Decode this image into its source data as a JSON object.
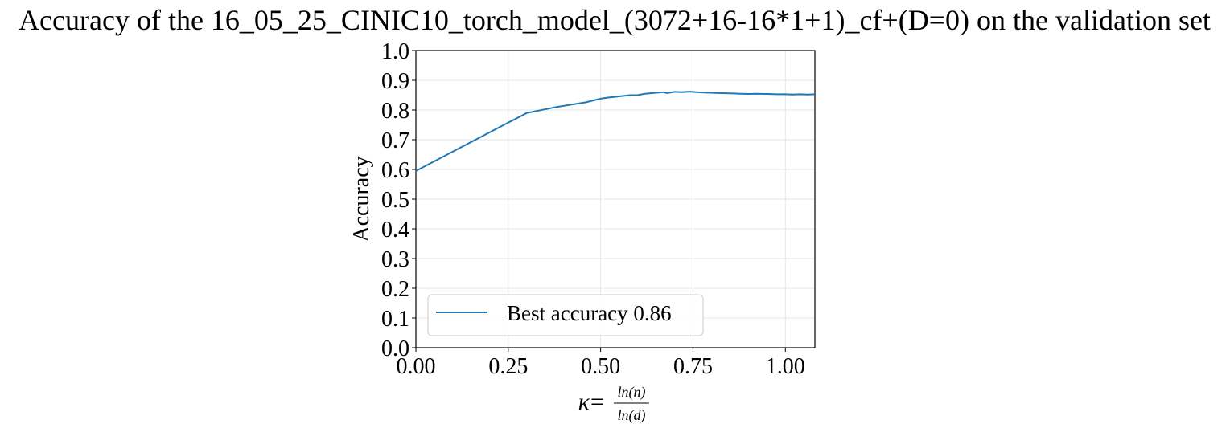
{
  "chart_data": {
    "type": "line",
    "title": "Accuracy of the 16_05_25_CINIC10_torch_model_(3072+16-16*1+1)_cf+(D=0) on the validation set",
    "xlabel": {
      "prefix": "κ",
      "equals": "=",
      "numerator": "ln(n)",
      "denominator": "ln(d)"
    },
    "ylabel": "Accuracy",
    "xlim": [
      0.0,
      1.08
    ],
    "ylim": [
      0.0,
      1.0
    ],
    "xticks": [
      0.0,
      0.25,
      0.5,
      0.75,
      1.0
    ],
    "xtick_labels": [
      "0.00",
      "0.25",
      "0.50",
      "0.75",
      "1.00"
    ],
    "yticks": [
      0.0,
      0.1,
      0.2,
      0.3,
      0.4,
      0.5,
      0.6,
      0.7,
      0.8,
      0.9,
      1.0
    ],
    "ytick_labels": [
      "0.0",
      "0.1",
      "0.2",
      "0.3",
      "0.4",
      "0.5",
      "0.6",
      "0.7",
      "0.8",
      "0.9",
      "1.0"
    ],
    "grid": true,
    "legend_position": "lower-left",
    "series": [
      {
        "name": "Best accuracy 0.86",
        "color": "#1f77b4",
        "x": [
          0.0,
          0.3,
          0.38,
          0.46,
          0.5,
          0.52,
          0.55,
          0.58,
          0.6,
          0.62,
          0.65,
          0.67,
          0.68,
          0.7,
          0.72,
          0.74,
          0.76,
          0.78,
          0.8,
          0.82,
          0.85,
          0.88,
          0.9,
          0.92,
          0.95,
          0.98,
          1.0,
          1.02,
          1.04,
          1.06,
          1.08
        ],
        "y": [
          0.595,
          0.79,
          0.81,
          0.826,
          0.838,
          0.842,
          0.846,
          0.85,
          0.85,
          0.855,
          0.858,
          0.86,
          0.857,
          0.861,
          0.86,
          0.862,
          0.86,
          0.859,
          0.858,
          0.857,
          0.856,
          0.855,
          0.854,
          0.855,
          0.854,
          0.853,
          0.853,
          0.852,
          0.853,
          0.852,
          0.853
        ]
      }
    ]
  }
}
